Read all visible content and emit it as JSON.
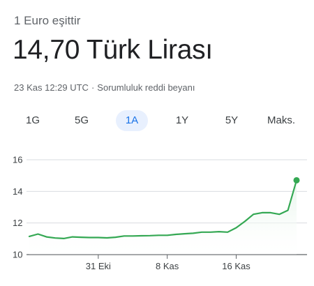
{
  "header": {
    "subtitle": "1 Euro eşittir",
    "value": "14,70 Türk Lirası",
    "timestamp": "23 Kas 12:29 UTC",
    "separator": "·",
    "disclaimer": "Sorumluluk reddi beyanı"
  },
  "range_tabs": [
    {
      "label": "1G",
      "active": false
    },
    {
      "label": "5G",
      "active": false
    },
    {
      "label": "1A",
      "active": true
    },
    {
      "label": "1Y",
      "active": false
    },
    {
      "label": "5Y",
      "active": false
    },
    {
      "label": "Maks.",
      "active": false
    }
  ],
  "colors": {
    "line": "#34a853",
    "fill": "#e6f4ea",
    "grid": "#dadce0",
    "axis": "#5f6368",
    "active_tab_bg": "#e8f0fe",
    "active_tab_text": "#1a73e8"
  },
  "chart_data": {
    "type": "line",
    "y_ticks": [
      10,
      12,
      14,
      16
    ],
    "ylim": [
      10,
      16
    ],
    "x_ticks": [
      {
        "label": "31 Eki",
        "day": 31
      },
      {
        "label": "8 Kas",
        "day": 39
      },
      {
        "label": "16 Kas",
        "day": 47
      }
    ],
    "xlim": [
      23,
      54
    ],
    "grid": true,
    "series": [
      {
        "x": [
          23,
          24,
          25,
          26,
          27,
          28,
          29,
          30,
          31,
          32,
          33,
          34,
          35,
          36,
          37,
          38,
          39,
          40,
          41,
          42,
          43,
          44,
          45,
          46,
          47,
          48,
          49,
          50,
          51,
          52,
          53,
          54
        ],
        "y": [
          11.15,
          11.3,
          11.12,
          11.05,
          11.02,
          11.12,
          11.1,
          11.08,
          11.08,
          11.06,
          11.1,
          11.18,
          11.18,
          11.19,
          11.2,
          11.22,
          11.22,
          11.28,
          11.32,
          11.35,
          11.42,
          11.42,
          11.45,
          11.42,
          11.7,
          12.1,
          12.55,
          12.65,
          12.65,
          12.55,
          12.8,
          14.7
        ]
      }
    ]
  }
}
